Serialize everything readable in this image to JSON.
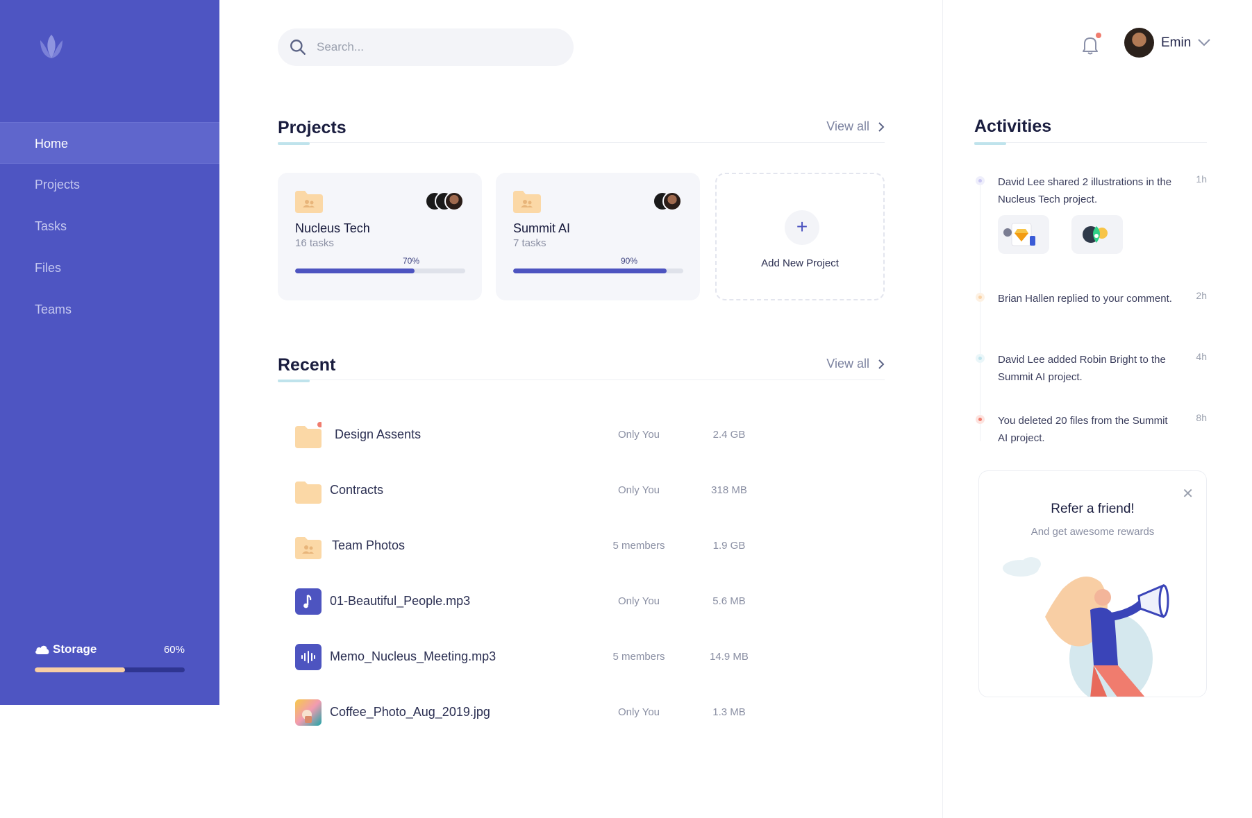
{
  "sidebar": {
    "nav": [
      {
        "label": "Home",
        "active": true
      },
      {
        "label": "Projects",
        "active": false
      },
      {
        "label": "Tasks",
        "active": false
      },
      {
        "label": "Files",
        "active": false
      },
      {
        "label": "Teams",
        "active": false
      }
    ],
    "storage": {
      "label": "Storage",
      "percent_label": "60%",
      "percent": 0.6
    }
  },
  "search": {
    "placeholder": "Search..."
  },
  "projects": {
    "title": "Projects",
    "view_all": "View all",
    "items": [
      {
        "name": "Nucleus Tech",
        "tasks": "16 tasks",
        "progress_label": "70%",
        "progress": 0.7
      },
      {
        "name": "Summit AI",
        "tasks": "7 tasks",
        "progress_label": "90%",
        "progress": 0.9
      }
    ],
    "add_label": "Add New Project"
  },
  "recent": {
    "title": "Recent",
    "view_all": "View all",
    "files": [
      {
        "name": "Design Assents",
        "access": "Only You",
        "size": "2.4 GB",
        "icon": "folder-icon"
      },
      {
        "name": "Contracts",
        "access": "Only You",
        "size": "318 MB",
        "icon": "folder-icon"
      },
      {
        "name": "Team Photos",
        "access": "5 members",
        "size": "1.9 GB",
        "icon": "shared-folder-icon"
      },
      {
        "name": "01-Beautiful_People.mp3",
        "access": "Only You",
        "size": "5.6 MB",
        "icon": "music-note-icon"
      },
      {
        "name": "Memo_Nucleus_Meeting.mp3",
        "access": "5 members",
        "size": "14.9 MB",
        "icon": "audio-wave-icon"
      },
      {
        "name": "Coffee_Photo_Aug_2019.jpg",
        "access": "Only You",
        "size": "1.3 MB",
        "icon": "image-thumbnail-icon"
      }
    ]
  },
  "user": {
    "name": "Emin"
  },
  "activities": {
    "title": "Activities",
    "items": [
      {
        "text": "David Lee shared 2 illustrations in the Nucleus Tech project.",
        "time": "1h",
        "color": "#c9c6f2"
      },
      {
        "text": "Brian Hallen replied to your comment.",
        "time": "2h",
        "color": "#f9d3a8"
      },
      {
        "text": "David Lee added Robin Bright to the Summit AI project.",
        "time": "4h",
        "color": "#bfe3ec"
      },
      {
        "text": "You deleted 20 files from the Summit AI project.",
        "time": "8h",
        "color": "#f07c6e"
      }
    ]
  },
  "refer": {
    "title": "Refer a friend!",
    "subtitle": "And get awesome rewards"
  },
  "colors": {
    "sidebar": "#4e55c2",
    "accent": "#4d54c0",
    "storage_fill": "#f8cea4",
    "folder": "#fbd8a6",
    "notification": "#f07c6e"
  }
}
